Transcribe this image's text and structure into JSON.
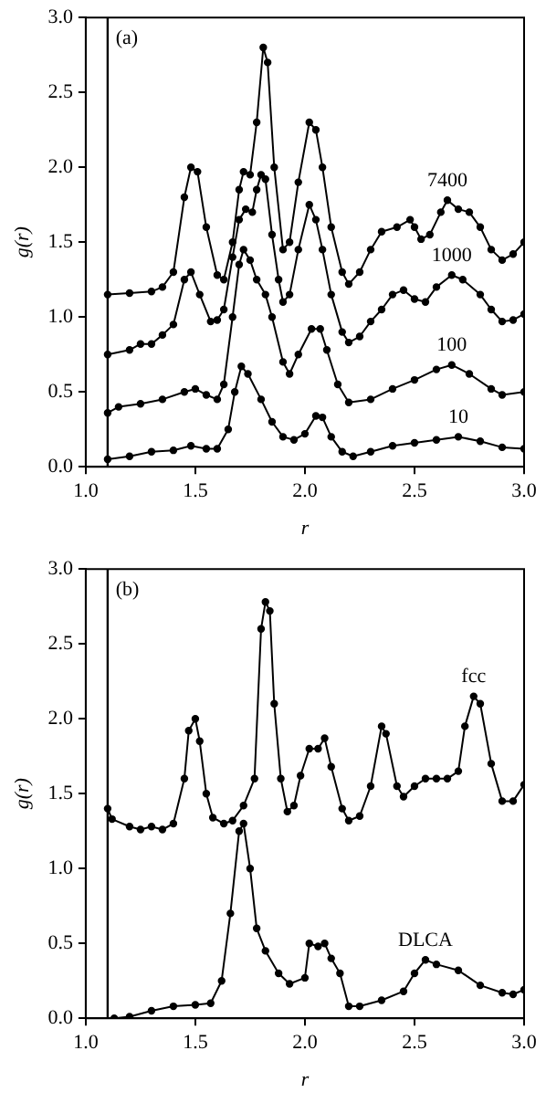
{
  "chart_data": [
    {
      "type": "line",
      "title": "(a)",
      "xlabel": "r",
      "ylabel": "g(r)",
      "xlim": [
        1.0,
        3.0
      ],
      "ylim": [
        0.0,
        3.0
      ],
      "xticks": [
        {
          "value": 1.0,
          "label": "1.0"
        },
        {
          "value": 1.5,
          "label": "1.5"
        },
        {
          "value": 2.0,
          "label": "2.0"
        },
        {
          "value": 2.5,
          "label": "2.5"
        },
        {
          "value": 3.0,
          "label": "3.0"
        }
      ],
      "yticks": [
        {
          "value": 0.0,
          "label": "0.0"
        },
        {
          "value": 0.5,
          "label": "0.5"
        },
        {
          "value": 1.0,
          "label": "1.0"
        },
        {
          "value": 1.5,
          "label": "1.5"
        },
        {
          "value": 2.0,
          "label": "2.0"
        },
        {
          "value": 2.5,
          "label": "2.5"
        },
        {
          "value": 3.0,
          "label": "3.0"
        }
      ],
      "grid": false,
      "legend": false,
      "marker": "circle",
      "line_style": "solid",
      "ref_lines": [
        {
          "axis": "x",
          "value": 1.1,
          "color": "#000000"
        }
      ],
      "series": [
        {
          "name": "7400",
          "color": "#000000",
          "x": [
            1.1,
            1.2,
            1.3,
            1.35,
            1.4,
            1.45,
            1.48,
            1.51,
            1.55,
            1.6,
            1.63,
            1.67,
            1.7,
            1.72,
            1.75,
            1.78,
            1.81,
            1.83,
            1.86,
            1.9,
            1.93,
            1.97,
            2.02,
            2.05,
            2.08,
            2.12,
            2.17,
            2.2,
            2.25,
            2.3,
            2.35,
            2.42,
            2.48,
            2.5,
            2.53,
            2.57,
            2.62,
            2.65,
            2.7,
            2.75,
            2.8,
            2.85,
            2.9,
            2.95,
            3.0
          ],
          "values": [
            1.15,
            1.16,
            1.17,
            1.2,
            1.3,
            1.8,
            2.0,
            1.97,
            1.6,
            1.28,
            1.25,
            1.5,
            1.85,
            1.97,
            1.95,
            2.3,
            2.8,
            2.7,
            2.0,
            1.45,
            1.5,
            1.9,
            2.3,
            2.25,
            2.0,
            1.6,
            1.3,
            1.22,
            1.3,
            1.45,
            1.57,
            1.6,
            1.65,
            1.6,
            1.52,
            1.55,
            1.7,
            1.78,
            1.72,
            1.7,
            1.6,
            1.45,
            1.38,
            1.42,
            1.5
          ]
        },
        {
          "name": "1000",
          "color": "#000000",
          "x": [
            1.1,
            1.2,
            1.25,
            1.3,
            1.35,
            1.4,
            1.45,
            1.48,
            1.52,
            1.57,
            1.6,
            1.63,
            1.67,
            1.7,
            1.73,
            1.76,
            1.78,
            1.8,
            1.82,
            1.85,
            1.88,
            1.9,
            1.93,
            1.97,
            2.02,
            2.05,
            2.08,
            2.12,
            2.17,
            2.2,
            2.25,
            2.3,
            2.35,
            2.4,
            2.45,
            2.5,
            2.55,
            2.6,
            2.67,
            2.72,
            2.8,
            2.85,
            2.9,
            2.95,
            3.0
          ],
          "values": [
            0.75,
            0.78,
            0.82,
            0.82,
            0.88,
            0.95,
            1.25,
            1.3,
            1.15,
            0.97,
            0.98,
            1.05,
            1.4,
            1.65,
            1.72,
            1.7,
            1.85,
            1.95,
            1.92,
            1.55,
            1.25,
            1.1,
            1.15,
            1.45,
            1.75,
            1.65,
            1.45,
            1.15,
            0.9,
            0.83,
            0.87,
            0.97,
            1.05,
            1.15,
            1.18,
            1.12,
            1.1,
            1.2,
            1.28,
            1.25,
            1.15,
            1.05,
            0.97,
            0.98,
            1.02
          ]
        },
        {
          "name": "100",
          "color": "#000000",
          "x": [
            1.1,
            1.15,
            1.25,
            1.35,
            1.45,
            1.5,
            1.55,
            1.6,
            1.63,
            1.67,
            1.7,
            1.72,
            1.75,
            1.78,
            1.82,
            1.85,
            1.9,
            1.93,
            1.97,
            2.03,
            2.07,
            2.1,
            2.15,
            2.2,
            2.3,
            2.4,
            2.5,
            2.6,
            2.67,
            2.75,
            2.85,
            2.9,
            3.0
          ],
          "values": [
            0.36,
            0.4,
            0.42,
            0.45,
            0.5,
            0.52,
            0.48,
            0.45,
            0.55,
            1.0,
            1.35,
            1.45,
            1.38,
            1.25,
            1.15,
            1.0,
            0.7,
            0.62,
            0.75,
            0.92,
            0.92,
            0.78,
            0.55,
            0.43,
            0.45,
            0.52,
            0.58,
            0.65,
            0.68,
            0.62,
            0.52,
            0.48,
            0.5
          ]
        },
        {
          "name": "10",
          "color": "#000000",
          "x": [
            1.1,
            1.2,
            1.3,
            1.4,
            1.48,
            1.55,
            1.6,
            1.65,
            1.68,
            1.71,
            1.74,
            1.8,
            1.85,
            1.9,
            1.95,
            2.0,
            2.05,
            2.08,
            2.12,
            2.17,
            2.22,
            2.3,
            2.4,
            2.5,
            2.6,
            2.7,
            2.8,
            2.9,
            3.0
          ],
          "values": [
            0.05,
            0.07,
            0.1,
            0.11,
            0.14,
            0.12,
            0.12,
            0.25,
            0.5,
            0.67,
            0.62,
            0.45,
            0.3,
            0.2,
            0.18,
            0.22,
            0.34,
            0.33,
            0.2,
            0.1,
            0.07,
            0.1,
            0.14,
            0.16,
            0.18,
            0.2,
            0.17,
            0.13,
            0.12
          ]
        }
      ]
    },
    {
      "type": "line",
      "title": "(b)",
      "xlabel": "r",
      "ylabel": "g(r)",
      "xlim": [
        1.0,
        3.0
      ],
      "ylim": [
        0.0,
        3.0
      ],
      "xticks": [
        {
          "value": 1.0,
          "label": "1.0"
        },
        {
          "value": 1.5,
          "label": "1.5"
        },
        {
          "value": 2.0,
          "label": "2.0"
        },
        {
          "value": 2.5,
          "label": "2.5"
        },
        {
          "value": 3.0,
          "label": "3.0"
        }
      ],
      "yticks": [
        {
          "value": 0.0,
          "label": "0.0"
        },
        {
          "value": 0.5,
          "label": "0.5"
        },
        {
          "value": 1.0,
          "label": "1.0"
        },
        {
          "value": 1.5,
          "label": "1.5"
        },
        {
          "value": 2.0,
          "label": "2.0"
        },
        {
          "value": 2.5,
          "label": "2.5"
        },
        {
          "value": 3.0,
          "label": "3.0"
        }
      ],
      "grid": false,
      "legend": false,
      "marker": "circle",
      "line_style": "solid",
      "ref_lines": [
        {
          "axis": "x",
          "value": 1.1,
          "color": "#000000"
        }
      ],
      "series": [
        {
          "name": "fcc",
          "color": "#000000",
          "x": [
            1.1,
            1.12,
            1.2,
            1.25,
            1.3,
            1.35,
            1.4,
            1.45,
            1.47,
            1.5,
            1.52,
            1.55,
            1.58,
            1.63,
            1.67,
            1.72,
            1.77,
            1.8,
            1.82,
            1.84,
            1.86,
            1.89,
            1.92,
            1.95,
            1.98,
            2.02,
            2.06,
            2.09,
            2.12,
            2.17,
            2.2,
            2.25,
            2.3,
            2.35,
            2.37,
            2.42,
            2.45,
            2.5,
            2.55,
            2.6,
            2.65,
            2.7,
            2.73,
            2.77,
            2.8,
            2.85,
            2.9,
            2.95,
            3.0
          ],
          "values": [
            1.4,
            1.33,
            1.28,
            1.26,
            1.28,
            1.26,
            1.3,
            1.6,
            1.92,
            2.0,
            1.85,
            1.5,
            1.34,
            1.3,
            1.32,
            1.42,
            1.6,
            2.6,
            2.78,
            2.72,
            2.1,
            1.6,
            1.38,
            1.42,
            1.62,
            1.8,
            1.8,
            1.87,
            1.68,
            1.4,
            1.32,
            1.35,
            1.55,
            1.95,
            1.9,
            1.55,
            1.48,
            1.55,
            1.6,
            1.6,
            1.6,
            1.65,
            1.95,
            2.15,
            2.1,
            1.7,
            1.45,
            1.45,
            1.56
          ]
        },
        {
          "name": "DLCA",
          "color": "#000000",
          "x": [
            1.13,
            1.2,
            1.3,
            1.4,
            1.5,
            1.57,
            1.62,
            1.66,
            1.7,
            1.72,
            1.75,
            1.78,
            1.82,
            1.88,
            1.93,
            2.0,
            2.02,
            2.06,
            2.09,
            2.12,
            2.16,
            2.2,
            2.25,
            2.35,
            2.45,
            2.5,
            2.55,
            2.6,
            2.7,
            2.8,
            2.9,
            2.95,
            3.0
          ],
          "values": [
            0.0,
            0.01,
            0.05,
            0.08,
            0.09,
            0.1,
            0.25,
            0.7,
            1.25,
            1.3,
            1.0,
            0.6,
            0.45,
            0.3,
            0.23,
            0.27,
            0.5,
            0.48,
            0.5,
            0.4,
            0.3,
            0.08,
            0.08,
            0.12,
            0.18,
            0.3,
            0.39,
            0.36,
            0.32,
            0.22,
            0.17,
            0.16,
            0.19
          ]
        }
      ]
    }
  ]
}
